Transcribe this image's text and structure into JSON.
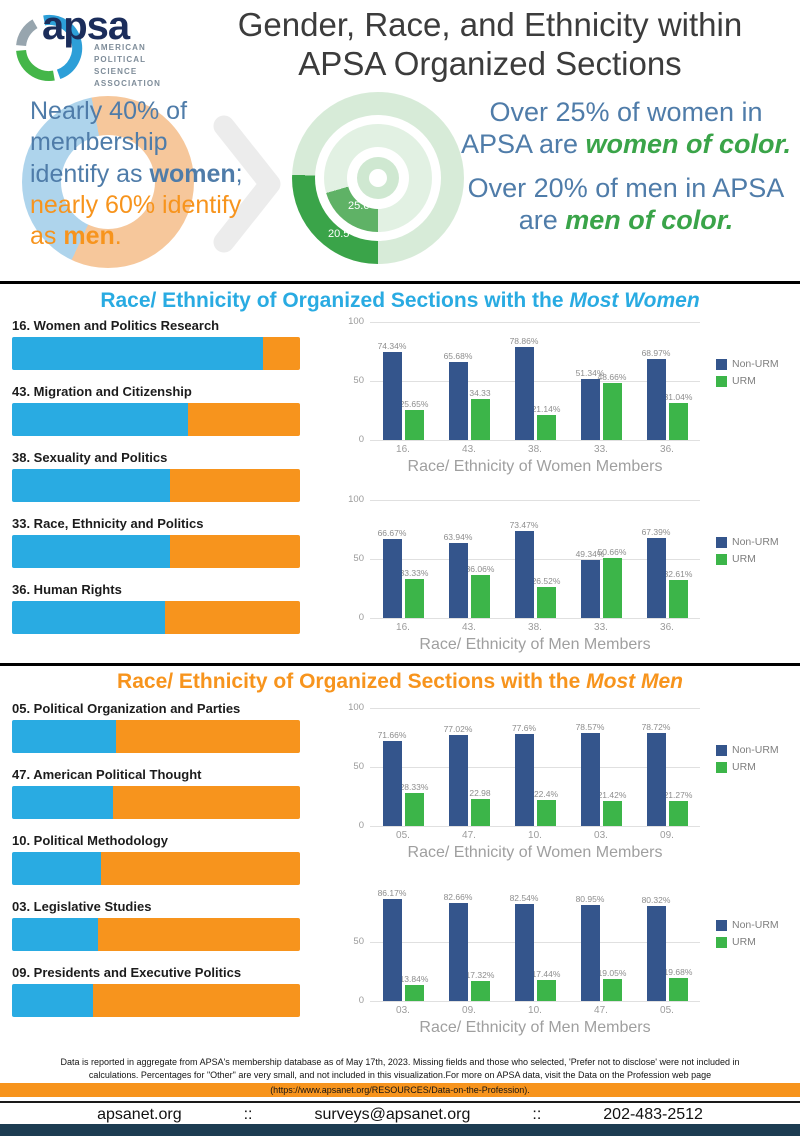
{
  "theme": {
    "blue": "#29abe2",
    "orange": "#f7941d",
    "navy": "#34558c",
    "green": "#3cb549",
    "steel_blue_text": "#4f7ca9",
    "green_text": "#3aa449",
    "footer_bar": "#1d3c52"
  },
  "header": {
    "logo": {
      "word": "apsa",
      "caption": [
        "AMERICAN",
        "POLITICAL",
        "SCIENCE",
        "ASSOCIATION"
      ]
    },
    "title": [
      "Gender, Race, and Ethnicity within",
      "APSA Organized Sections"
    ]
  },
  "intro": {
    "left": {
      "a": "Nearly 40% of membership identify as ",
      "b": "women",
      "c": "; ",
      "d": "nearly 60% identify as ",
      "e": "men",
      "f": "."
    },
    "right": [
      {
        "lead": "Over 25% of women in APSA are ",
        "em": "women of color."
      },
      {
        "lead": "Over 20% of men in APSA are ",
        "em": "men of color."
      }
    ]
  },
  "sections": {
    "women": {
      "heading": "Race/ Ethnicity of Organized Sections with the ",
      "heading_em": "Most Women"
    },
    "men": {
      "heading": "Race/ Ethnicity of Organized Sections with the ",
      "heading_em": "Most Men"
    }
  },
  "chart_data": [
    {
      "id": "membership-gender",
      "type": "pie",
      "donut": true,
      "labels": [
        "women",
        "men"
      ],
      "values": [
        40,
        60
      ],
      "colors": [
        "#aed4ec",
        "#f6c79b"
      ]
    },
    {
      "id": "members-of-color",
      "type": "pie",
      "donut": true,
      "rings": [
        {
          "display": "25.6",
          "value": 25.6,
          "label": "women of color share of women",
          "color": "#3aa449",
          "track": "#d7ebd8"
        },
        {
          "display": "20.5",
          "value": 20.5,
          "label": "men of color share of men",
          "color": "#5fb266",
          "track": "#e2f1e3"
        }
      ]
    },
    {
      "id": "stack-most-women",
      "type": "bar",
      "stacked": true,
      "categories": [
        "16. Women and Politics Research",
        "43. Migration and Citizenship",
        "38. Sexuality and Politics",
        "33. Race, Ethnicity and Politics",
        "36. Human Rights"
      ],
      "series": [
        {
          "name": "women",
          "color": "#29abe2",
          "values": [
            87,
            61,
            55,
            55,
            53
          ]
        },
        {
          "name": "men",
          "color": "#f7941d",
          "values": [
            13,
            39,
            45,
            45,
            47
          ]
        }
      ]
    },
    {
      "id": "mw-women-members",
      "type": "bar",
      "title": "Race/ Ethnicity of Women Members",
      "categories": [
        "16.",
        "43.",
        "38.",
        "33.",
        "36."
      ],
      "ylim": [
        0,
        100
      ],
      "yticks": [
        0,
        50,
        100
      ],
      "legend_position": "right",
      "series": [
        {
          "name": "Non-URM",
          "color": "#34558c",
          "values": [
            74.34,
            65.68,
            78.86,
            51.34,
            68.97
          ],
          "labels": [
            "74.34%",
            "65.68%",
            "78.86%",
            "51.34%",
            "68.97%"
          ]
        },
        {
          "name": "URM",
          "color": "#3cb549",
          "values": [
            25.65,
            34.33,
            21.14,
            48.66,
            31.04
          ],
          "labels": [
            "25.65%",
            "34.33",
            "21.14%",
            "48.66%",
            "31.04%"
          ]
        }
      ]
    },
    {
      "id": "mw-men-members",
      "type": "bar",
      "title": "Race/ Ethnicity of Men Members",
      "categories": [
        "16.",
        "43.",
        "38.",
        "33.",
        "36."
      ],
      "ylim": [
        0,
        100
      ],
      "yticks": [
        0,
        50,
        100
      ],
      "legend_position": "right",
      "series": [
        {
          "name": "Non-URM",
          "color": "#34558c",
          "values": [
            66.67,
            63.94,
            73.47,
            49.34,
            67.39
          ],
          "labels": [
            "66.67%",
            "63.94%",
            "73.47%",
            "49.34%",
            "67.39%"
          ]
        },
        {
          "name": "URM",
          "color": "#3cb549",
          "values": [
            33.33,
            36.06,
            26.52,
            50.66,
            32.61
          ],
          "labels": [
            "33.33%",
            "36.06%",
            "26.52%",
            "50.66%",
            "32.61%"
          ]
        }
      ]
    },
    {
      "id": "stack-most-men",
      "type": "bar",
      "stacked": true,
      "categories": [
        "05. Political Organization and Parties",
        "47. American Political Thought",
        "10. Political Methodology",
        "03. Legislative Studies",
        "09. Presidents and Executive Politics"
      ],
      "series": [
        {
          "name": "women",
          "color": "#29abe2",
          "values": [
            36,
            35,
            31,
            30,
            28
          ]
        },
        {
          "name": "men",
          "color": "#f7941d",
          "values": [
            64,
            65,
            69,
            70,
            72
          ]
        }
      ]
    },
    {
      "id": "mm-women-members",
      "type": "bar",
      "title": "Race/ Ethnicity of Women Members",
      "categories": [
        "05.",
        "47.",
        "10.",
        "03.",
        "09."
      ],
      "ylim": [
        0,
        100
      ],
      "yticks": [
        0,
        50,
        100
      ],
      "legend_position": "right",
      "series": [
        {
          "name": "Non-URM",
          "color": "#34558c",
          "values": [
            71.66,
            77.02,
            77.6,
            78.57,
            78.72
          ],
          "labels": [
            "71.66%",
            "77.02%",
            "77.6%",
            "78.57%",
            "78.72%"
          ]
        },
        {
          "name": "URM",
          "color": "#3cb549",
          "values": [
            28.33,
            22.98,
            22.4,
            21.42,
            21.27
          ],
          "labels": [
            "28.33%",
            "22.98",
            "22.4%",
            "21.42%",
            "21.27%"
          ]
        }
      ]
    },
    {
      "id": "mm-men-members",
      "type": "bar",
      "title": "Race/ Ethnicity of Men Members",
      "categories": [
        "03.",
        "09.",
        "10.",
        "47.",
        "05."
      ],
      "ylim": [
        0,
        100
      ],
      "yticks": [
        0,
        50
      ],
      "legend_position": "right",
      "series": [
        {
          "name": "Non-URM",
          "color": "#34558c",
          "values": [
            86.17,
            82.66,
            82.54,
            80.95,
            80.32
          ],
          "labels": [
            "86.17%",
            "82.66%",
            "82.54%",
            "80.95%",
            "80.32%"
          ]
        },
        {
          "name": "URM",
          "color": "#3cb549",
          "values": [
            13.84,
            17.32,
            17.44,
            19.05,
            19.68
          ],
          "labels": [
            "13.84%",
            "17.32%",
            "17.44%",
            "19.05%",
            "19.68%"
          ]
        }
      ]
    }
  ],
  "footnote": {
    "lines": [
      "Data is reported in aggregate from APSA's membership database as of May 17th, 2023. Missing fields and those who selected, 'Prefer not to disclose' were not included in",
      "calculations. Percentages for \"Other\" are very small, and not included in this visualization.For more on APSA data, visit the Data on the Profession web page"
    ],
    "highlight": "(https://www.apsanet.org/RESOURCES/Data-on-the-Profession)."
  },
  "footer": {
    "website": "apsanet.org",
    "sep1": "::",
    "email": "surveys@apsanet.org",
    "sep2": "::",
    "phone": "202-483-2512"
  }
}
